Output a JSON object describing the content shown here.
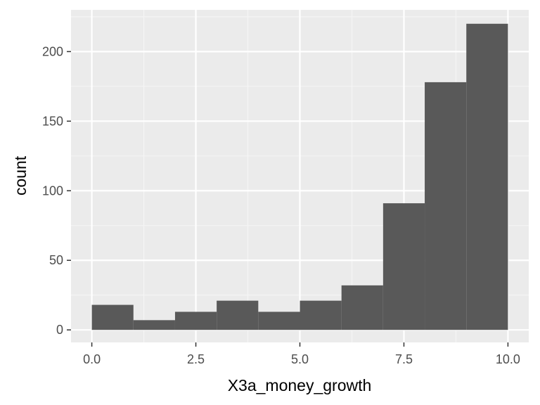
{
  "chart_data": {
    "type": "bar",
    "subtype": "histogram",
    "xlabel": "X3a_money_growth",
    "ylabel": "count",
    "xlim": [
      -0.5,
      10.5
    ],
    "ylim": [
      -9,
      230
    ],
    "x_ticks": [
      0,
      2.5,
      5,
      7.5,
      10
    ],
    "x_tick_labels": [
      "0.0",
      "2.5",
      "5.0",
      "7.5",
      "10.0"
    ],
    "y_ticks": [
      0,
      50,
      100,
      150,
      200
    ],
    "y_tick_labels": [
      "0",
      "50",
      "100",
      "150",
      "200"
    ],
    "bins": [
      {
        "x0": 0,
        "x1": 1,
        "count": 18
      },
      {
        "x0": 1,
        "x1": 2,
        "count": 7
      },
      {
        "x0": 2,
        "x1": 3,
        "count": 13
      },
      {
        "x0": 3,
        "x1": 4,
        "count": 21
      },
      {
        "x0": 4,
        "x1": 5,
        "count": 13
      },
      {
        "x0": 5,
        "x1": 6,
        "count": 21
      },
      {
        "x0": 6,
        "x1": 7,
        "count": 32
      },
      {
        "x0": 7,
        "x1": 8,
        "count": 91
      },
      {
        "x0": 8,
        "x1": 9,
        "count": 178
      },
      {
        "x0": 9,
        "x1": 10,
        "count": 220
      }
    ],
    "grid": true,
    "colors": {
      "bar_fill": "#595959",
      "panel_background": "#ebebeb",
      "grid_major": "#ffffff",
      "grid_minor": "#f5f5f5",
      "tick_text": "#4d4d4d",
      "tick_mark": "#333333",
      "title_text": "#000000"
    }
  }
}
